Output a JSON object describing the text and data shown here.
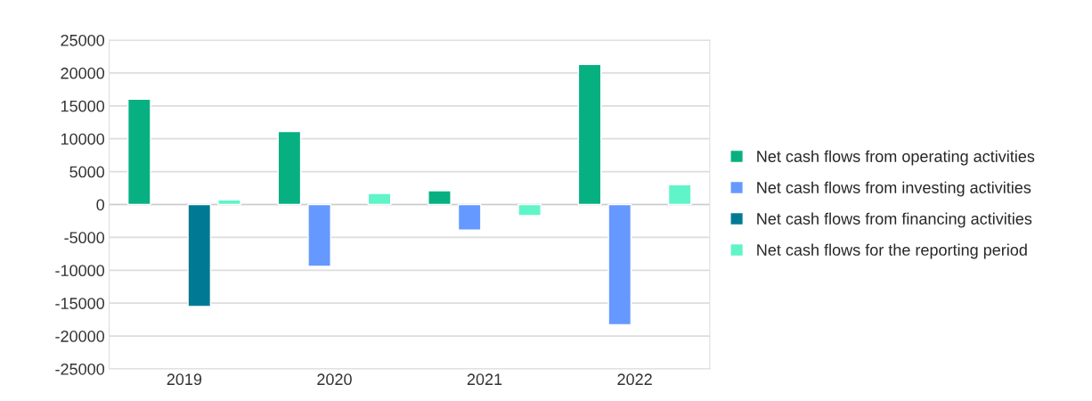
{
  "chart_data": {
    "type": "bar",
    "categories": [
      "2019",
      "2020",
      "2021",
      "2022"
    ],
    "series": [
      {
        "name": "Net cash flows from operating activities",
        "color": "#07b081",
        "values": [
          16000,
          11100,
          2100,
          21300
        ]
      },
      {
        "name": "Net cash flows from investing activities",
        "color": "#6699ff",
        "values": [
          null,
          -9400,
          -3900,
          -18300
        ]
      },
      {
        "name": "Net cash flows from financing activities",
        "color": "#007a94",
        "values": [
          -15500,
          null,
          null,
          null
        ]
      },
      {
        "name": "Net cash flows for the reporting period",
        "color": "#5ff5c9",
        "values": [
          700,
          1700,
          -1700,
          3000
        ]
      }
    ],
    "ylim": [
      -25000,
      25000
    ],
    "yticks": [
      -25000,
      -20000,
      -15000,
      -10000,
      -5000,
      0,
      5000,
      10000,
      15000,
      20000,
      25000
    ],
    "grid": "y",
    "legend": "right"
  }
}
